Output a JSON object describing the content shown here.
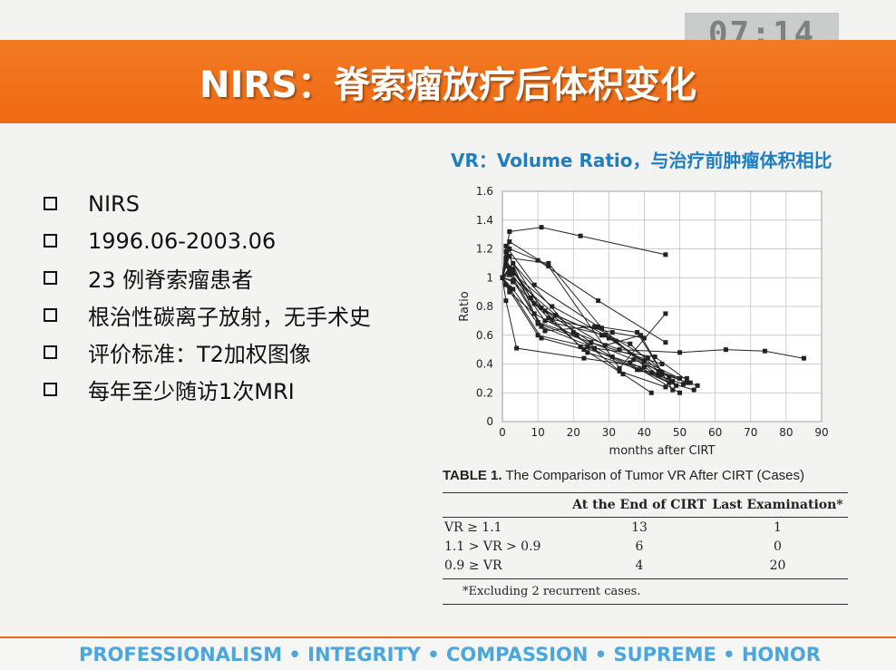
{
  "timer": "07:14",
  "slide": {
    "title": "NIRS：脊索瘤放疗后体积变化",
    "bullets": [
      "NIRS",
      "1996.06-2003.06",
      "23 例脊索瘤患者",
      "根治性碳离子放射，无手术史",
      "评价标准：T2加权图像",
      "每年至少随访1次MRI"
    ],
    "vr_caption": "VR：Volume Ratio，与治疗前肿瘤体积相比",
    "footer": "PROFESSIONALISM • INTEGRITY • COMPASSION • SUPREME • HONOR"
  },
  "chart_data": {
    "type": "line",
    "xlabel": "months after CIRT",
    "ylabel": "Ratio",
    "xlim": [
      0,
      90
    ],
    "ylim": [
      0,
      1.6
    ],
    "xticks": [
      "0",
      "10",
      "20",
      "30",
      "40",
      "50",
      "60",
      "70",
      "80",
      "90"
    ],
    "yticks": [
      "0",
      "0.2",
      "0.4",
      "0.6",
      "0.8",
      "1",
      "1.2",
      "1.4",
      "1.6"
    ],
    "grid": true,
    "line_color": "#222222",
    "series": [
      {
        "x": [
          0,
          2,
          11,
          22,
          46
        ],
        "y": [
          1.0,
          1.32,
          1.35,
          1.29,
          1.16
        ]
      },
      {
        "x": [
          0,
          3,
          20,
          33,
          50,
          63,
          74,
          85
        ],
        "y": [
          1.0,
          1.1,
          0.62,
          0.5,
          0.48,
          0.5,
          0.49,
          0.44
        ]
      },
      {
        "x": [
          0,
          1,
          4,
          23,
          40
        ],
        "y": [
          1.0,
          0.84,
          0.51,
          0.44,
          0.38
        ]
      },
      {
        "x": [
          0,
          2,
          10,
          27,
          46
        ],
        "y": [
          1.0,
          1.2,
          1.12,
          0.84,
          0.55
        ]
      },
      {
        "x": [
          0,
          3,
          9,
          25,
          45
        ],
        "y": [
          1.0,
          1.06,
          0.82,
          0.55,
          0.4
        ]
      },
      {
        "x": [
          0,
          1,
          13,
          28,
          42,
          48
        ],
        "y": [
          1.0,
          1.14,
          1.1,
          0.65,
          0.34,
          0.28
        ]
      },
      {
        "x": [
          0,
          2,
          12,
          29,
          40,
          50
        ],
        "y": [
          1.0,
          1.05,
          0.7,
          0.6,
          0.42,
          0.3
        ]
      },
      {
        "x": [
          0,
          3,
          11,
          26,
          43,
          53
        ],
        "y": [
          1.0,
          0.98,
          0.66,
          0.51,
          0.45,
          0.27
        ]
      },
      {
        "x": [
          0,
          1,
          10,
          24,
          38,
          52
        ],
        "y": [
          1.0,
          0.95,
          0.6,
          0.52,
          0.36,
          0.3
        ]
      },
      {
        "x": [
          0,
          2,
          9,
          31,
          47,
          54
        ],
        "y": [
          1.0,
          0.9,
          0.75,
          0.45,
          0.27,
          0.22
        ]
      },
      {
        "x": [
          0,
          3,
          14,
          32,
          44,
          51
        ],
        "y": [
          1.0,
          1.03,
          0.8,
          0.56,
          0.32,
          0.26
        ]
      },
      {
        "x": [
          0,
          1,
          8,
          22,
          36,
          49
        ],
        "y": [
          1.0,
          1.12,
          0.86,
          0.52,
          0.41,
          0.25
        ]
      },
      {
        "x": [
          0,
          2,
          11,
          23,
          34,
          42
        ],
        "y": [
          1.0,
          0.93,
          0.58,
          0.5,
          0.33,
          0.2
        ]
      },
      {
        "x": [
          0,
          2,
          12,
          30,
          45,
          55
        ],
        "y": [
          1.0,
          1.07,
          0.77,
          0.58,
          0.33,
          0.25
        ]
      },
      {
        "x": [
          0,
          1,
          9,
          27,
          38,
          48
        ],
        "y": [
          1.0,
          1.22,
          0.95,
          0.66,
          0.62,
          0.22
        ]
      },
      {
        "x": [
          0,
          3,
          13,
          24,
          39,
          50
        ],
        "y": [
          1.0,
          0.97,
          0.72,
          0.48,
          0.36,
          0.2
        ]
      },
      {
        "x": [
          0,
          2,
          10,
          21,
          33,
          46
        ],
        "y": [
          1.0,
          1.15,
          0.69,
          0.6,
          0.35,
          0.24
        ]
      },
      {
        "x": [
          0,
          1,
          12,
          26,
          41,
          47
        ],
        "y": [
          1.0,
          1.08,
          0.63,
          0.66,
          0.44,
          0.31
        ]
      },
      {
        "x": [
          0,
          2,
          15,
          28,
          36,
          44
        ],
        "y": [
          1.0,
          1.02,
          0.74,
          0.6,
          0.54,
          0.35
        ]
      },
      {
        "x": [
          0,
          3,
          10,
          25,
          37,
          52
        ],
        "y": [
          1.0,
          0.92,
          0.68,
          0.55,
          0.43,
          0.27
        ]
      },
      {
        "x": [
          0,
          1,
          11,
          29,
          39,
          45
        ],
        "y": [
          1.0,
          1.18,
          0.79,
          0.53,
          0.6,
          0.34
        ]
      },
      {
        "x": [
          0,
          2,
          13,
          33,
          46
        ],
        "y": [
          1.0,
          1.25,
          1.08,
          0.37,
          0.75
        ]
      },
      {
        "x": [
          0,
          1,
          14,
          31,
          40
        ],
        "y": [
          1.0,
          1.1,
          0.71,
          0.62,
          0.58
        ]
      }
    ]
  },
  "table": {
    "label": "TABLE 1.",
    "caption": "The Comparison of Tumor VR After CIRT (Cases)",
    "headers": [
      "",
      "At the End of CIRT",
      "Last Examination*"
    ],
    "rows": [
      [
        "VR ≥ 1.1",
        "13",
        "1"
      ],
      [
        "1.1 > VR > 0.9",
        "6",
        "0"
      ],
      [
        "0.9 ≥ VR",
        "4",
        "20"
      ]
    ],
    "note": "*Excluding 2 recurrent cases."
  }
}
